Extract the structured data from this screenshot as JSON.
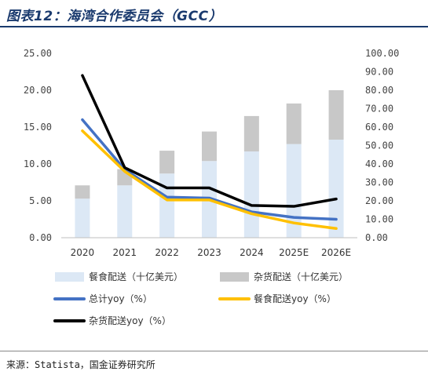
{
  "header": {
    "title": "图表12：海湾合作委员会（GCC）"
  },
  "footer": {
    "source": "来源：Statista，国金证券研究所"
  },
  "chart_data": {
    "type": "bar",
    "categories": [
      "2020",
      "2021",
      "2022",
      "2023",
      "2024",
      "2025E",
      "2026E"
    ],
    "left_axis": {
      "ylim": [
        0,
        25
      ],
      "ticks": [
        "25.00",
        "20.00",
        "15.00",
        "10.00",
        "5.00",
        "0.00"
      ]
    },
    "right_axis": {
      "ylim": [
        0,
        100
      ],
      "ticks": [
        "100.00",
        "90.00",
        "80.00",
        "70.00",
        "60.00",
        "50.00",
        "40.00",
        "30.00",
        "20.00",
        "10.00",
        "0.00"
      ]
    },
    "series": [
      {
        "name": "餐食配送（十亿美元）",
        "type": "bar",
        "axis": "left",
        "color": "#dce8f5",
        "values": [
          5.3,
          7.1,
          8.7,
          10.4,
          11.7,
          12.7,
          13.3
        ]
      },
      {
        "name": "杂货配送（十亿美元）",
        "type": "bar",
        "axis": "left",
        "color": "#c8c8c8",
        "values": [
          1.8,
          2.2,
          3.1,
          4.0,
          4.8,
          5.5,
          6.7
        ]
      },
      {
        "name": "总计yoy（%）",
        "type": "line",
        "axis": "right",
        "color": "#4472c4",
        "values": [
          64,
          37,
          22,
          21.5,
          14,
          11,
          10
        ]
      },
      {
        "name": "餐食配送yoy（%）",
        "type": "line",
        "axis": "right",
        "color": "#ffc000",
        "values": [
          58,
          36,
          20.5,
          20.5,
          13,
          8,
          5
        ]
      },
      {
        "name": "杂货配送yoy（%）",
        "type": "line",
        "axis": "right",
        "color": "#000000",
        "values": [
          88,
          38,
          27,
          27,
          17.5,
          17,
          21
        ]
      }
    ],
    "legend_position": "bottom"
  }
}
